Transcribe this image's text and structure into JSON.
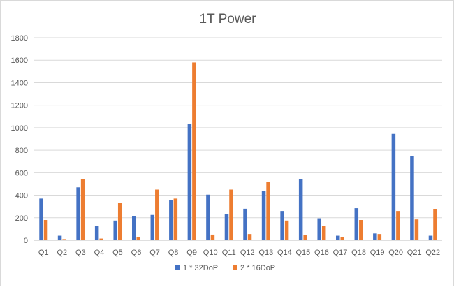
{
  "chart_data": {
    "type": "bar",
    "title": "1T Power",
    "xlabel": "",
    "ylabel": "",
    "ylim": [
      0,
      1800
    ],
    "yticks": [
      0,
      200,
      400,
      600,
      800,
      1000,
      1200,
      1400,
      1600,
      1800
    ],
    "grid": true,
    "legend_position": "bottom",
    "categories": [
      "Q1",
      "Q2",
      "Q3",
      "Q4",
      "Q5",
      "Q6",
      "Q7",
      "Q8",
      "Q9",
      "Q10",
      "Q11",
      "Q12",
      "Q13",
      "Q14",
      "Q15",
      "Q16",
      "Q17",
      "Q18",
      "Q19",
      "Q20",
      "Q21",
      "Q22"
    ],
    "series": [
      {
        "name": "1 * 32DoP",
        "color": "#4472c4",
        "values": [
          370,
          40,
          470,
          130,
          175,
          215,
          225,
          355,
          1035,
          405,
          235,
          280,
          440,
          260,
          540,
          195,
          40,
          285,
          60,
          945,
          745,
          40
        ]
      },
      {
        "name": "2 * 16DoP",
        "color": "#ed7d31",
        "values": [
          180,
          10,
          540,
          15,
          335,
          30,
          450,
          370,
          1580,
          50,
          450,
          55,
          520,
          175,
          45,
          125,
          30,
          180,
          55,
          260,
          185,
          275
        ]
      }
    ]
  }
}
